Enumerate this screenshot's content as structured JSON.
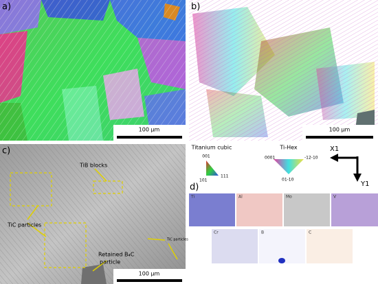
{
  "panels": {
    "a": {
      "label": "a)",
      "scale": "100 µm"
    },
    "b": {
      "label": "b)",
      "scale": "100 µm"
    },
    "c": {
      "label": "c)",
      "scale": "100 µm",
      "annotations": [
        "TiB blocks",
        "TiC particles",
        "TiC particles",
        "Retained B₄C",
        "particle"
      ]
    },
    "d": {
      "label": "d)",
      "elements": [
        "Ti",
        "Al",
        "Mo",
        "V",
        "Cr",
        "B",
        "C"
      ]
    }
  },
  "legend": {
    "cubic": {
      "title": "Titanium cubic",
      "poles": [
        "001",
        "101",
        "111"
      ]
    },
    "hex": {
      "title": "Ti-Hex",
      "poles": [
        "0001",
        "-12-10",
        "01-10"
      ]
    }
  },
  "axes": {
    "x": "X1",
    "y": "Y1"
  }
}
